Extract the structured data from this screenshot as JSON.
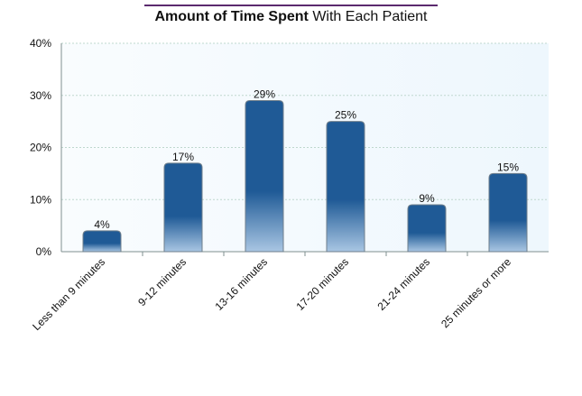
{
  "title": {
    "bold": "Amount of Time Spent",
    "regular": " With Each Patient"
  },
  "colors": {
    "accent_rule": "#5b2a6e",
    "bar_top": "#1f5a96",
    "bar_bottom": "#a9c6e3",
    "plot_bg": "#eef7fd",
    "grid": "#bfd8cf"
  },
  "chart_data": {
    "type": "bar",
    "categories": [
      "Less than 9 minutes",
      "9-12 minutes",
      "13-16 minutes",
      "17-20 minutes",
      "21-24 minutes",
      "25 minutes or more"
    ],
    "values": [
      4,
      17,
      29,
      25,
      9,
      15
    ],
    "data_labels": [
      "4%",
      "17%",
      "29%",
      "25%",
      "9%",
      "15%"
    ],
    "title": "Amount of Time Spent With Each Patient",
    "xlabel": "",
    "ylabel": "",
    "ylim": [
      0,
      40
    ],
    "yticks": [
      0,
      10,
      20,
      30,
      40
    ],
    "ytick_labels": [
      "0%",
      "10%",
      "20%",
      "30%",
      "40%"
    ],
    "grid": true,
    "legend": "none"
  }
}
